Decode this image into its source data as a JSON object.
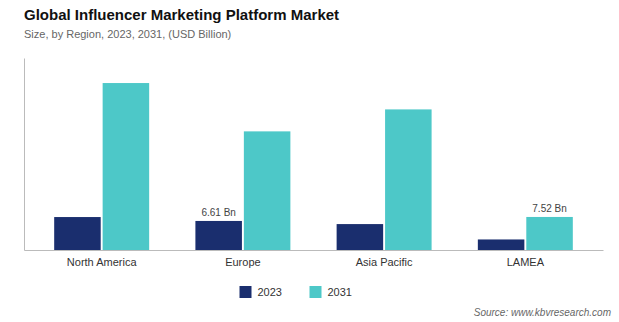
{
  "chart_data": {
    "type": "bar",
    "title": "Global Influencer Marketing Platform Market",
    "subtitle": "Size, by Region, 2023, 2031, (USD Billion)",
    "source": "Source: www.kbvresearch.com",
    "categories": [
      "North America",
      "Europe",
      "Asia Pacific",
      "LAMEA"
    ],
    "series": [
      {
        "name": "2023",
        "color": "#1a2e6e",
        "values": [
          7.5,
          6.61,
          5.9,
          2.4
        ],
        "value_labels": [
          null,
          "6.61 Bn",
          null,
          null
        ]
      },
      {
        "name": "2031",
        "color": "#4dc8c8",
        "values": [
          38.0,
          27.0,
          32.0,
          7.52
        ],
        "value_labels": [
          null,
          null,
          null,
          "7.52 Bn"
        ]
      }
    ],
    "ylim": [
      0,
      43.7
    ],
    "tick_labels": "x",
    "grid": false,
    "legend": "bottom"
  }
}
